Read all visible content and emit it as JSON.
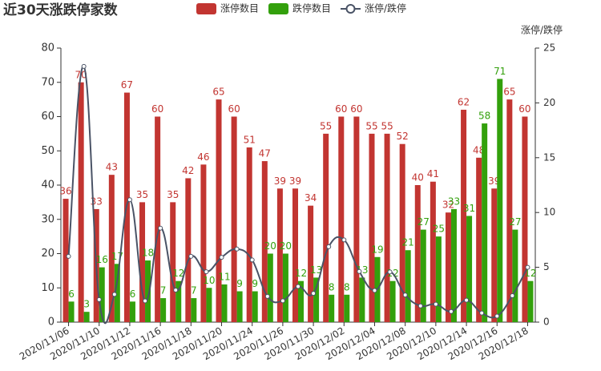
{
  "chart_data": {
    "type": "bar",
    "title": "近30天涨跌停家数",
    "y2_label": "涨停/跌停",
    "categories": [
      "2020/11/06",
      null,
      "2020/11/10",
      null,
      "2020/11/12",
      null,
      "2020/11/16",
      null,
      "2020/11/18",
      null,
      "2020/11/20",
      null,
      "2020/11/24",
      null,
      "2020/11/26",
      null,
      "2020/11/30",
      null,
      "2020/12/02",
      null,
      "2020/12/04",
      null,
      "2020/12/08",
      null,
      "2020/12/10",
      null,
      "2020/12/14",
      null,
      "2020/12/16",
      null,
      "2020/12/18"
    ],
    "series": [
      {
        "name": "涨停数目",
        "type": "bar",
        "color": "#c23531",
        "values": [
          36,
          70,
          33,
          43,
          67,
          35,
          60,
          35,
          42,
          46,
          65,
          60,
          51,
          47,
          39,
          39,
          34,
          55,
          60,
          60,
          55,
          55,
          52,
          40,
          41,
          32,
          62,
          48,
          39,
          65,
          60
        ]
      },
      {
        "name": "跌停数目",
        "type": "bar",
        "color": "#33a00c",
        "values": [
          6,
          3,
          16,
          17,
          6,
          18,
          7,
          12,
          7,
          10,
          11,
          9,
          9,
          20,
          20,
          12,
          13,
          8,
          8,
          13,
          19,
          12,
          21,
          27,
          25,
          33,
          31,
          58,
          71,
          27,
          12
        ]
      },
      {
        "name": "涨停/跌停",
        "type": "line",
        "axis": "y2",
        "color": "#4a5366",
        "values": [
          6,
          23.33,
          2.06,
          2.53,
          11.17,
          1.94,
          8.57,
          2.92,
          6,
          4.6,
          5.91,
          6.67,
          5.67,
          2.35,
          1.95,
          3.25,
          2.62,
          6.88,
          7.5,
          4.62,
          2.89,
          4.58,
          2.48,
          1.48,
          1.64,
          0.97,
          2,
          0.83,
          0.55,
          2.41,
          5
        ]
      }
    ],
    "ylim": [
      0,
      80
    ],
    "yticks": [
      0,
      10,
      20,
      30,
      40,
      50,
      60,
      70,
      80
    ],
    "y2lim": [
      0,
      25
    ],
    "y2ticks": [
      0,
      5,
      10,
      15,
      20,
      25
    ],
    "grid": false,
    "legend": "top"
  }
}
